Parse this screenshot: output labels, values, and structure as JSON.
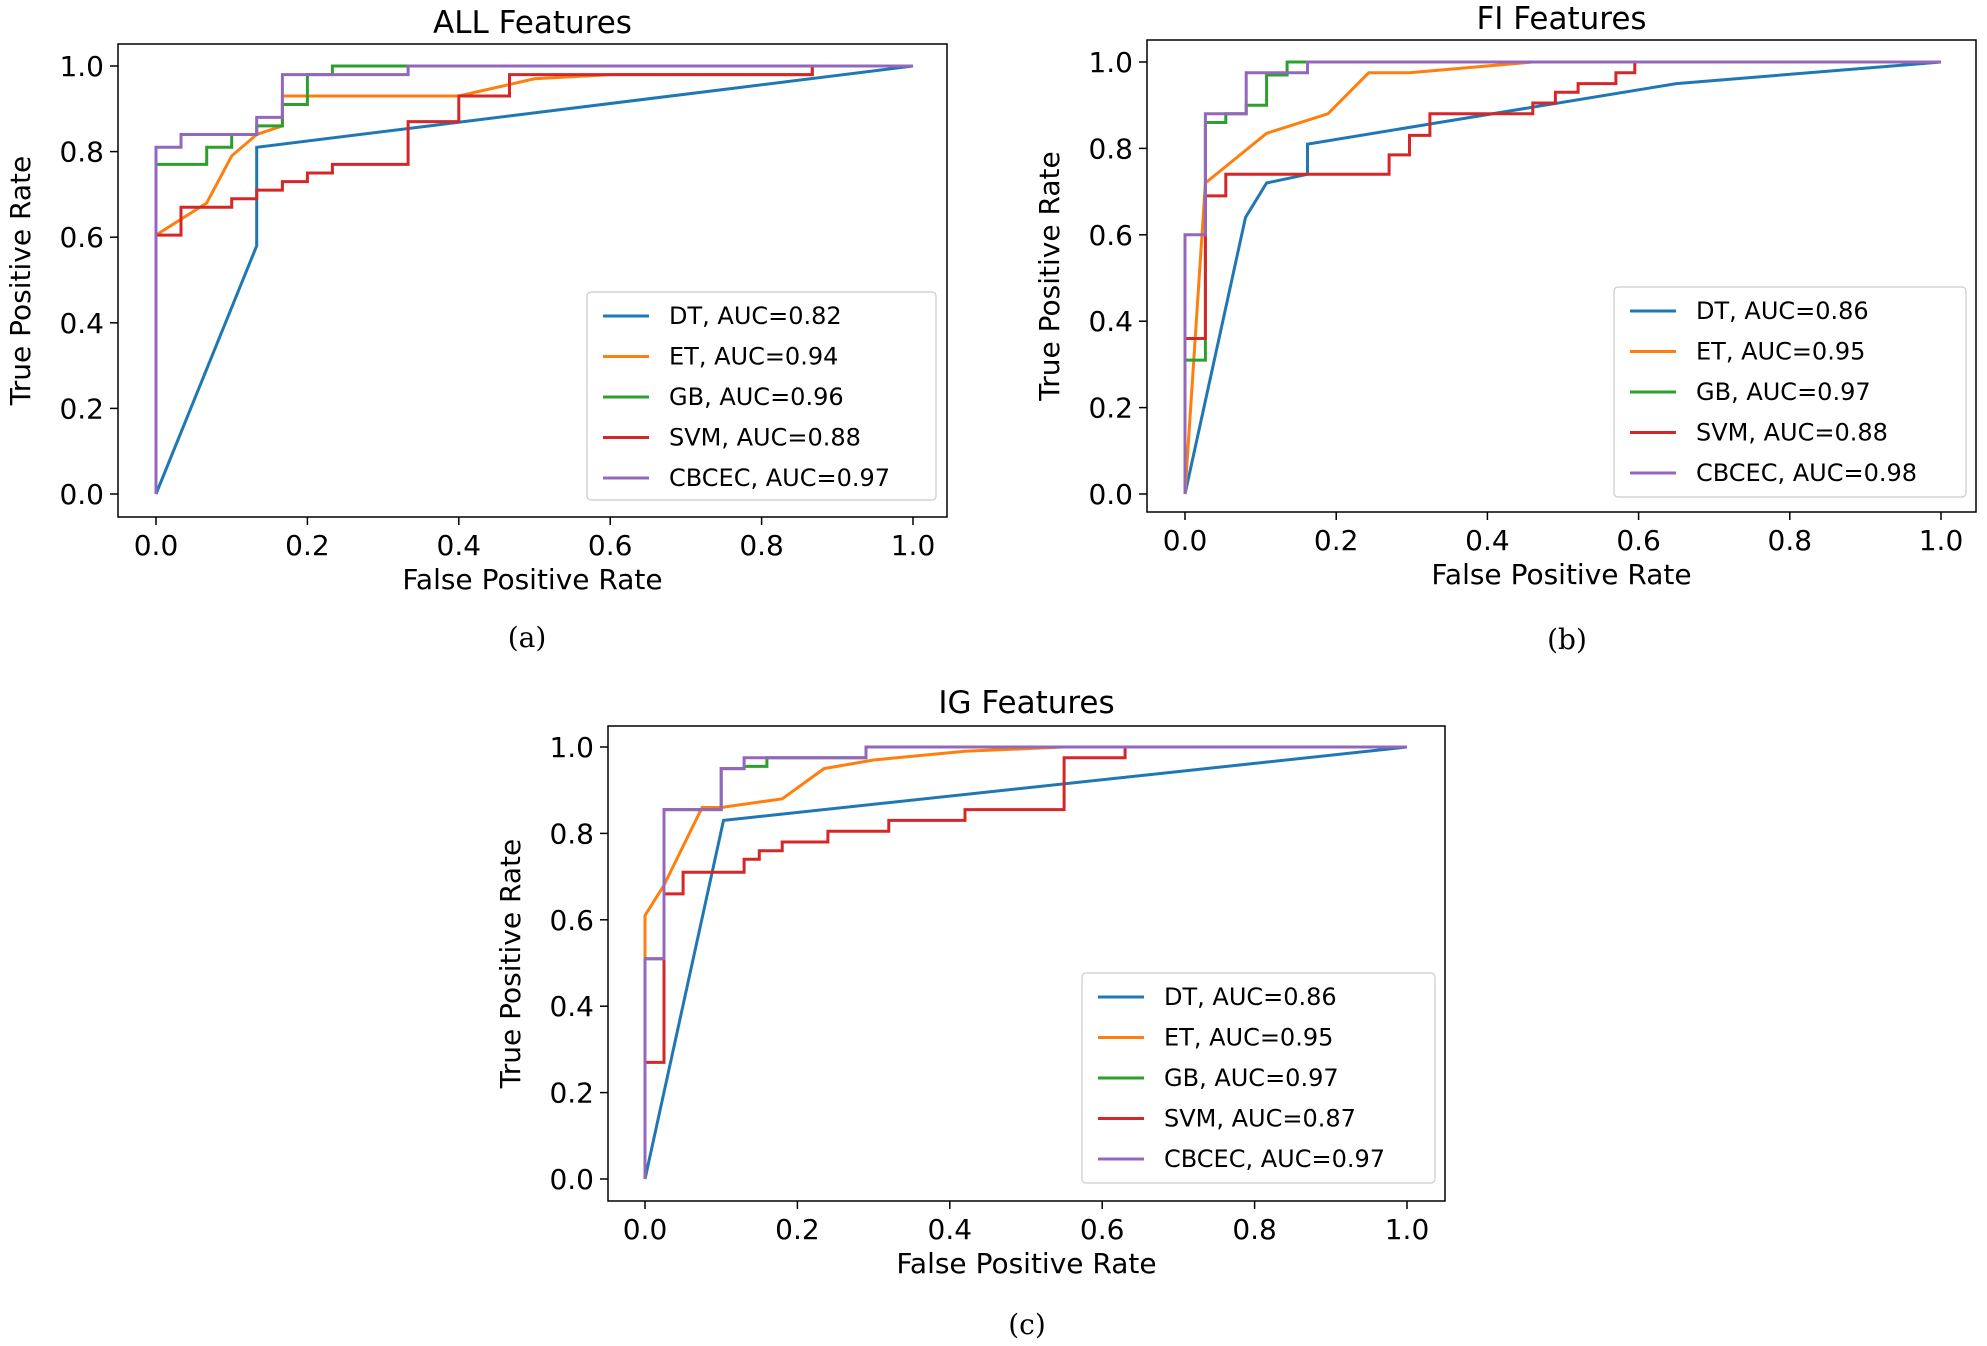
{
  "figure": {
    "captions": [
      "(a)",
      "(b)",
      "(c)"
    ]
  },
  "chart_data": [
    {
      "type": "line",
      "title": "ALL Features",
      "xlabel": "False Positive Rate",
      "ylabel": "True Positive Rate",
      "xlim": [
        0,
        1
      ],
      "ylim": [
        0,
        1
      ],
      "xticks": [
        "0.0",
        "0.2",
        "0.4",
        "0.6",
        "0.8",
        "1.0"
      ],
      "yticks": [
        "0.0",
        "0.2",
        "0.4",
        "0.6",
        "0.8",
        "1.0"
      ],
      "legend_position": "lower-right",
      "series": [
        {
          "name": "DT",
          "label": "DT, AUC=0.82",
          "color": "#1f77b4",
          "x": [
            0,
            0.133,
            0.133,
            1.0
          ],
          "y": [
            0,
            0.58,
            0.81,
            1.0
          ]
        },
        {
          "name": "ET",
          "label": "ET, AUC=0.94",
          "color": "#ff7f0e",
          "x": [
            0,
            0,
            0.067,
            0.1,
            0.133,
            0.167,
            0.167,
            0.233,
            0.333,
            0.4,
            0.45,
            0.5,
            0.6,
            0.867,
            0.867,
            1.0
          ],
          "y": [
            0,
            0.605,
            0.68,
            0.79,
            0.84,
            0.86,
            0.93,
            0.93,
            0.93,
            0.93,
            0.95,
            0.97,
            0.98,
            0.98,
            1.0,
            1.0
          ]
        },
        {
          "name": "GB",
          "label": "GB, AUC=0.96",
          "color": "#2ca02c",
          "x": [
            0,
            0,
            0.0,
            0.067,
            0.067,
            0.1,
            0.1,
            0.133,
            0.133,
            0.167,
            0.167,
            0.2,
            0.2,
            0.233,
            0.233,
            1.0
          ],
          "y": [
            0,
            0.77,
            0.77,
            0.77,
            0.81,
            0.81,
            0.84,
            0.84,
            0.86,
            0.86,
            0.91,
            0.91,
            0.98,
            0.98,
            1.0,
            1.0
          ]
        },
        {
          "name": "SVM",
          "label": "SVM, AUC=0.88",
          "color": "#d62728",
          "x": [
            0,
            0,
            0.033,
            0.033,
            0.1,
            0.1,
            0.133,
            0.133,
            0.167,
            0.167,
            0.2,
            0.2,
            0.233,
            0.233,
            0.333,
            0.333,
            0.4,
            0.4,
            0.467,
            0.467,
            0.867,
            0.867,
            1.0
          ],
          "y": [
            0,
            0.605,
            0.605,
            0.67,
            0.67,
            0.69,
            0.69,
            0.71,
            0.71,
            0.73,
            0.73,
            0.75,
            0.75,
            0.77,
            0.77,
            0.87,
            0.87,
            0.93,
            0.93,
            0.98,
            0.98,
            1.0,
            1.0
          ]
        },
        {
          "name": "CBCEC",
          "label": "CBCEC, AUC=0.97",
          "color": "#9467bd",
          "x": [
            0,
            0,
            0.033,
            0.033,
            0.133,
            0.133,
            0.167,
            0.167,
            0.333,
            0.333,
            1.0
          ],
          "y": [
            0,
            0.81,
            0.81,
            0.84,
            0.84,
            0.88,
            0.88,
            0.98,
            0.98,
            1.0,
            1.0
          ]
        }
      ]
    },
    {
      "type": "line",
      "title": "FI Features",
      "xlabel": "False Positive Rate",
      "ylabel": "True Positive Rate",
      "xlim": [
        0,
        1
      ],
      "ylim": [
        0,
        1
      ],
      "xticks": [
        "0.0",
        "0.2",
        "0.4",
        "0.6",
        "0.8",
        "1.0"
      ],
      "yticks": [
        "0.0",
        "0.2",
        "0.4",
        "0.6",
        "0.8",
        "1.0"
      ],
      "legend_position": "lower-right",
      "series": [
        {
          "name": "DT",
          "label": "DT, AUC=0.86",
          "color": "#1f77b4",
          "x": [
            0,
            0.08,
            0.108,
            0.162,
            0.162,
            0.65,
            1.0
          ],
          "y": [
            0,
            0.64,
            0.72,
            0.74,
            0.81,
            0.95,
            1.0
          ]
        },
        {
          "name": "ET",
          "label": "ET, AUC=0.95",
          "color": "#ff7f0e",
          "x": [
            0,
            0.027,
            0.108,
            0.189,
            0.243,
            0.297,
            0.46,
            1.0
          ],
          "y": [
            0,
            0.72,
            0.835,
            0.88,
            0.975,
            0.975,
            1.0,
            1.0
          ]
        },
        {
          "name": "GB",
          "label": "GB, AUC=0.97",
          "color": "#2ca02c",
          "x": [
            0,
            0,
            0.027,
            0.027,
            0.054,
            0.054,
            0.081,
            0.081,
            0.108,
            0.108,
            0.135,
            0.135,
            1.0
          ],
          "y": [
            0,
            0.31,
            0.31,
            0.86,
            0.86,
            0.88,
            0.88,
            0.9,
            0.9,
            0.97,
            0.97,
            1.0,
            1.0
          ]
        },
        {
          "name": "SVM",
          "label": "SVM, AUC=0.88",
          "color": "#d62728",
          "x": [
            0,
            0,
            0.027,
            0.027,
            0.054,
            0.054,
            0.27,
            0.27,
            0.297,
            0.297,
            0.324,
            0.324,
            0.46,
            0.46,
            0.49,
            0.49,
            0.52,
            0.52,
            0.57,
            0.57,
            0.595,
            0.595,
            1.0
          ],
          "y": [
            0,
            0.36,
            0.36,
            0.69,
            0.69,
            0.74,
            0.74,
            0.785,
            0.785,
            0.83,
            0.83,
            0.88,
            0.88,
            0.905,
            0.905,
            0.93,
            0.93,
            0.95,
            0.95,
            0.975,
            0.975,
            1.0,
            1.0
          ]
        },
        {
          "name": "CBCEC",
          "label": "CBCEC, AUC=0.98",
          "color": "#9467bd",
          "x": [
            0,
            0,
            0.027,
            0.027,
            0.081,
            0.081,
            0.162,
            0.162,
            1.0
          ],
          "y": [
            0,
            0.6,
            0.6,
            0.88,
            0.88,
            0.975,
            0.975,
            1.0,
            1.0
          ]
        }
      ]
    },
    {
      "type": "line",
      "title": "IG Features",
      "xlabel": "False Positive Rate",
      "ylabel": "True Positive Rate",
      "xlim": [
        0,
        1
      ],
      "ylim": [
        0,
        1
      ],
      "xticks": [
        "0.0",
        "0.2",
        "0.4",
        "0.6",
        "0.8",
        "1.0"
      ],
      "yticks": [
        "0.0",
        "0.2",
        "0.4",
        "0.6",
        "0.8",
        "1.0"
      ],
      "legend_position": "lower-right",
      "series": [
        {
          "name": "DT",
          "label": "DT, AUC=0.86",
          "color": "#1f77b4",
          "x": [
            0,
            0.103,
            1.0
          ],
          "y": [
            0,
            0.83,
            1.0
          ]
        },
        {
          "name": "ET",
          "label": "ET, AUC=0.95",
          "color": "#ff7f0e",
          "x": [
            0,
            0,
            0.025,
            0.075,
            0.1,
            0.18,
            0.235,
            0.3,
            0.42,
            0.55,
            1.0
          ],
          "y": [
            0,
            0.61,
            0.68,
            0.86,
            0.86,
            0.88,
            0.95,
            0.97,
            0.99,
            1.0,
            1.0
          ]
        },
        {
          "name": "GB",
          "label": "GB, AUC=0.97",
          "color": "#2ca02c",
          "x": [
            0,
            0,
            0.025,
            0.025,
            0.1,
            0.1,
            0.13,
            0.13,
            0.16,
            0.16,
            0.29,
            0.29,
            1.0
          ],
          "y": [
            0,
            0.51,
            0.51,
            0.855,
            0.855,
            0.95,
            0.95,
            0.955,
            0.955,
            0.975,
            0.975,
            1.0,
            1.0
          ]
        },
        {
          "name": "SVM",
          "label": "SVM, AUC=0.87",
          "color": "#d62728",
          "x": [
            0,
            0,
            0.025,
            0.025,
            0.05,
            0.05,
            0.13,
            0.13,
            0.15,
            0.15,
            0.18,
            0.18,
            0.24,
            0.24,
            0.32,
            0.32,
            0.42,
            0.42,
            0.55,
            0.55,
            0.63,
            0.63,
            1.0
          ],
          "y": [
            0,
            0.27,
            0.27,
            0.66,
            0.66,
            0.71,
            0.71,
            0.74,
            0.74,
            0.76,
            0.76,
            0.78,
            0.78,
            0.805,
            0.805,
            0.83,
            0.83,
            0.855,
            0.855,
            0.975,
            0.975,
            1.0,
            1.0
          ]
        },
        {
          "name": "CBCEC",
          "label": "CBCEC, AUC=0.97",
          "color": "#9467bd",
          "x": [
            0,
            0,
            0.025,
            0.025,
            0.1,
            0.1,
            0.13,
            0.13,
            0.29,
            0.29,
            1.0
          ],
          "y": [
            0,
            0.51,
            0.51,
            0.855,
            0.855,
            0.95,
            0.95,
            0.975,
            0.975,
            1.0,
            1.0
          ]
        }
      ]
    }
  ]
}
